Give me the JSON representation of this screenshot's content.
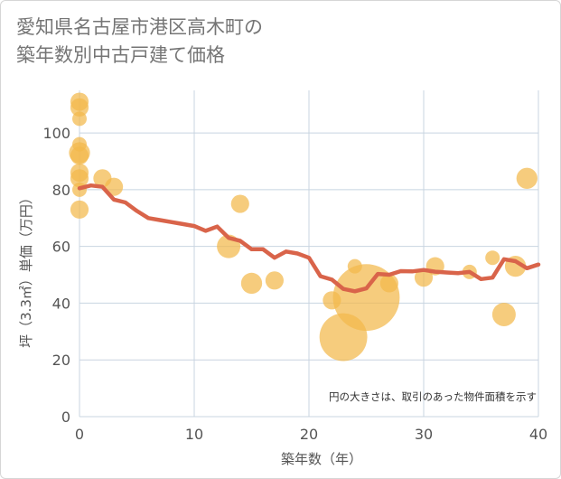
{
  "header": {
    "title_line1": "愛知県名古屋市港区高木町の",
    "title_line2": "築年数別中古戸建て価格"
  },
  "chart_data": {
    "type": "scatter",
    "xlabel": "築年数（年）",
    "ylabel": "坪（3.3㎡）単価（万円）",
    "xlim": [
      0,
      40
    ],
    "ylim": [
      0,
      115
    ],
    "xticks": [
      0,
      10,
      20,
      30,
      40
    ],
    "yticks": [
      0,
      20,
      40,
      60,
      80,
      100
    ],
    "grid": true,
    "annotation": "円の大きさは、取引のあった物件面積を示す",
    "colors": {
      "bubble": "#f2b84b",
      "line": "#d9644a",
      "grid": "#c8d4e0"
    },
    "bubbles": [
      {
        "x": 0,
        "y": 111,
        "size": 2
      },
      {
        "x": 0,
        "y": 109,
        "size": 2
      },
      {
        "x": 0,
        "y": 105,
        "size": 1
      },
      {
        "x": 0,
        "y": 96,
        "size": 1
      },
      {
        "x": 0,
        "y": 93,
        "size": 3
      },
      {
        "x": 0,
        "y": 92,
        "size": 2
      },
      {
        "x": 0,
        "y": 86,
        "size": 2
      },
      {
        "x": 0,
        "y": 84,
        "size": 2
      },
      {
        "x": 0,
        "y": 80,
        "size": 1
      },
      {
        "x": 0,
        "y": 73,
        "size": 2
      },
      {
        "x": 2,
        "y": 84,
        "size": 2
      },
      {
        "x": 3,
        "y": 81,
        "size": 2
      },
      {
        "x": 13,
        "y": 60,
        "size": 4
      },
      {
        "x": 14,
        "y": 75,
        "size": 2
      },
      {
        "x": 15,
        "y": 47,
        "size": 3
      },
      {
        "x": 17,
        "y": 48,
        "size": 2
      },
      {
        "x": 22,
        "y": 41,
        "size": 2
      },
      {
        "x": 23,
        "y": 28,
        "size": 22
      },
      {
        "x": 24,
        "y": 53,
        "size": 1
      },
      {
        "x": 25,
        "y": 42,
        "size": 46
      },
      {
        "x": 27,
        "y": 47,
        "size": 2
      },
      {
        "x": 30,
        "y": 49,
        "size": 2
      },
      {
        "x": 31,
        "y": 53,
        "size": 2
      },
      {
        "x": 34,
        "y": 51,
        "size": 1
      },
      {
        "x": 36,
        "y": 56,
        "size": 1
      },
      {
        "x": 37,
        "y": 36,
        "size": 4
      },
      {
        "x": 38,
        "y": 53,
        "size": 3
      },
      {
        "x": 39,
        "y": 84,
        "size": 3
      }
    ],
    "trend": {
      "x": [
        0,
        1,
        2,
        3,
        4,
        5,
        6,
        7,
        8,
        9,
        10,
        11,
        12,
        13,
        14,
        15,
        16,
        17,
        18,
        19,
        20,
        21,
        22,
        23,
        24,
        25,
        26,
        27,
        28,
        29,
        30,
        31,
        32,
        33,
        34,
        35,
        36,
        37,
        38,
        39,
        40
      ],
      "y": [
        80.5,
        81.5,
        81,
        76.5,
        75.5,
        72.5,
        70,
        69.3,
        68.6,
        67.9,
        67.2,
        65.5,
        67,
        63,
        62,
        59,
        59,
        56,
        58.2,
        57.5,
        56,
        49.5,
        48.3,
        45,
        44.2,
        45.2,
        50.3,
        50,
        51.3,
        51.2,
        51.7,
        51.1,
        50.8,
        50.6,
        51,
        48.5,
        49,
        55.5,
        54.8,
        52.3,
        53.6
      ]
    }
  }
}
